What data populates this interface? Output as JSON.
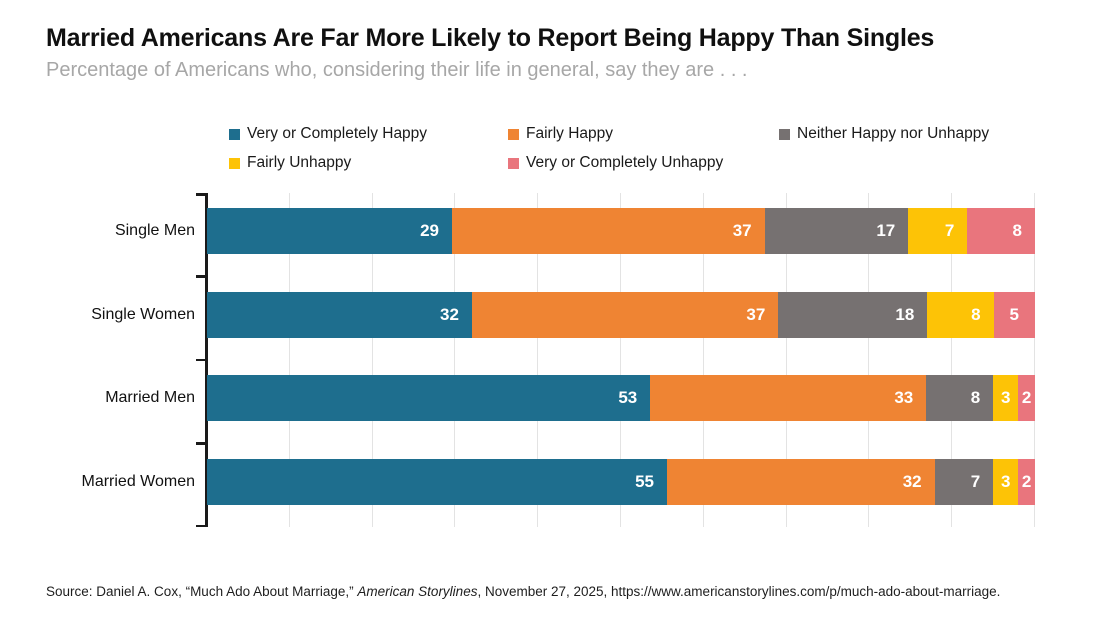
{
  "header": {
    "title": "Married Americans Are Far More Likely to Report Being Happy Than Singles",
    "subtitle": "Percentage of Americans who, considering their life in general, say they are . . ."
  },
  "source": {
    "prefix": "Source: Daniel A. Cox, “Much Ado About Marriage,” ",
    "italic": "American Storylines",
    "suffix": ", November 27, 2025, https://www.americanstorylines.com/p/much-ado-about-marriage."
  },
  "colors": {
    "teal": "#1E6E8E",
    "orange": "#EF8433",
    "gray": "#767171",
    "yellow": "#FDC306",
    "red": "#E9757D",
    "gridline": "#E3E3E3",
    "axis": "#1A1A1A",
    "bar_value_text": "#FFFFFF",
    "title_text": "#101010",
    "subtitle_text": "#A7A7A7"
  },
  "chart_data": {
    "type": "bar",
    "orientation": "horizontal-stacked",
    "normalized_to_100": true,
    "title": "Married Americans Are Far More Likely to Report Being Happy Than Singles",
    "subtitle": "Percentage of Americans who, considering their life in general, say they are . . .",
    "categories": [
      "Single Men",
      "Single Women",
      "Married Men",
      "Married Women"
    ],
    "series": [
      {
        "name": "Very or Completely Happy",
        "color": "#1E6E8E",
        "values": [
          29,
          32,
          53,
          55
        ]
      },
      {
        "name": "Fairly Happy",
        "color": "#EF8433",
        "values": [
          37,
          37,
          33,
          32
        ]
      },
      {
        "name": "Neither Happy nor Unhappy",
        "color": "#767171",
        "values": [
          17,
          18,
          8,
          7
        ]
      },
      {
        "name": "Fairly Unhappy",
        "color": "#FDC306",
        "values": [
          7,
          8,
          3,
          3
        ]
      },
      {
        "name": "Very or Completely Unhappy",
        "color": "#E9757D",
        "values": [
          8,
          5,
          2,
          2
        ]
      }
    ],
    "xlim": [
      0,
      100
    ],
    "gridline_interval": 10,
    "grid": true,
    "legend_position": "top",
    "value_labels": "inside-white",
    "xlabel": "",
    "ylabel": ""
  }
}
